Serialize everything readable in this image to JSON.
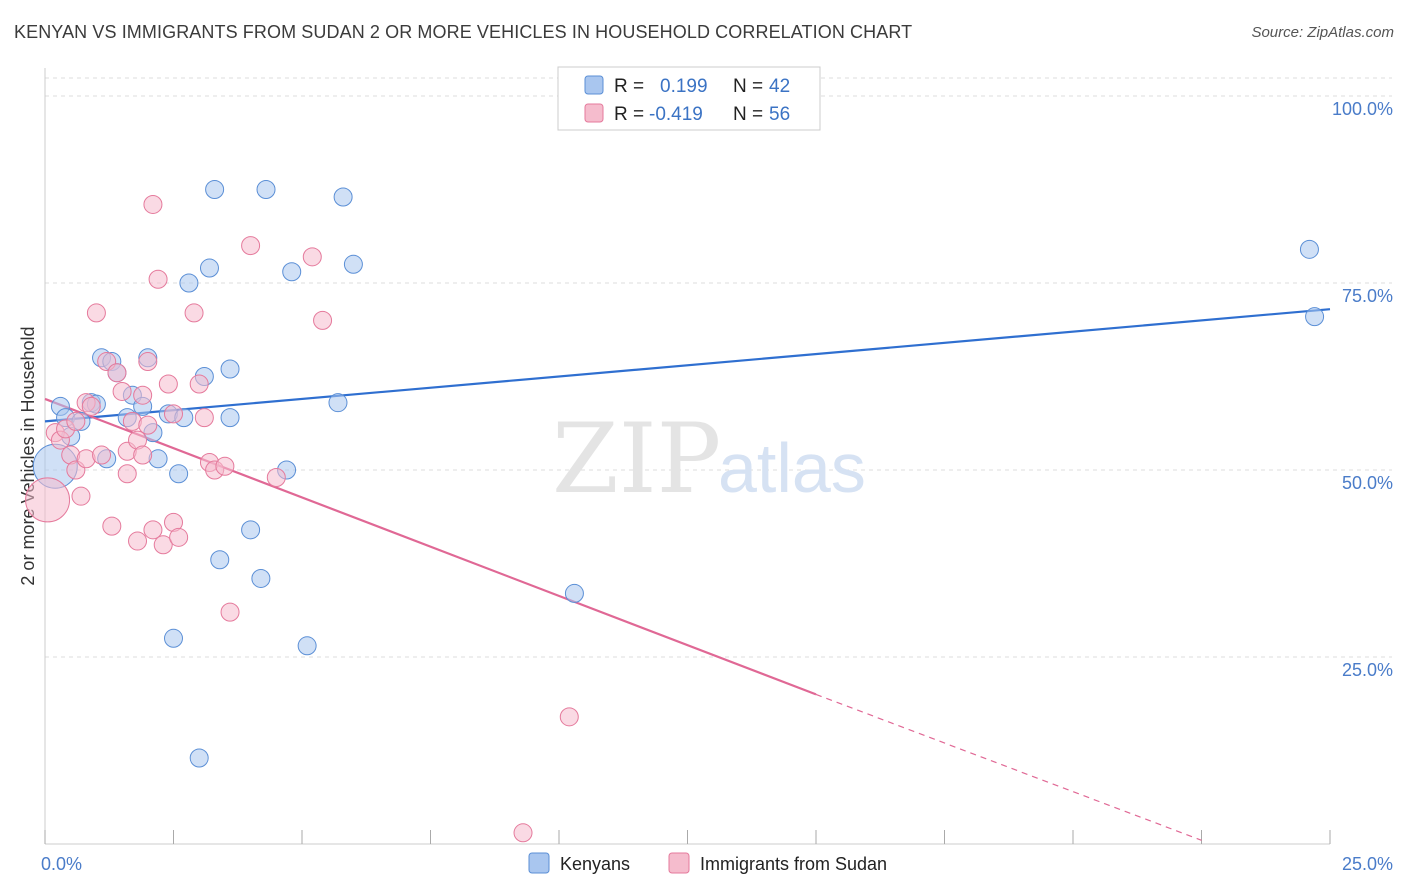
{
  "header": {
    "title": "KENYAN VS IMMIGRANTS FROM SUDAN 2 OR MORE VEHICLES IN HOUSEHOLD CORRELATION CHART",
    "source": "Source: ZipAtlas.com"
  },
  "watermark": {
    "zip": "ZIP",
    "atlas": "atlas"
  },
  "colors": {
    "kenyan_fill": "#a9c6ef",
    "kenyan_stroke": "#5b8fd6",
    "kenyan_line": "#2f6fd0",
    "sudan_fill": "#f5bccd",
    "sudan_stroke": "#e57a9c",
    "sudan_line": "#e06895",
    "grid": "#dddddd",
    "tick_text": "#4a7cc9"
  },
  "legend_top": {
    "rows": [
      {
        "r_label": "R =",
        "r_value": "0.199",
        "n_label": "N =",
        "n_value": "42"
      },
      {
        "r_label": "R =",
        "r_value": "-0.419",
        "n_label": "N =",
        "n_value": "56"
      }
    ]
  },
  "legend_bottom": {
    "items": [
      {
        "label": "Kenyans"
      },
      {
        "label": "Immigrants from Sudan"
      }
    ]
  },
  "chart_data": {
    "type": "scatter",
    "xlabel": "",
    "ylabel": "2 or more Vehicles in Household",
    "xlim": [
      0,
      25
    ],
    "ylim": [
      0,
      100
    ],
    "x_ticks": [
      "0.0%",
      "25.0%"
    ],
    "y_ticks": [
      "25.0%",
      "50.0%",
      "75.0%",
      "100.0%"
    ],
    "y_tick_values": [
      25,
      50,
      75,
      100
    ],
    "grid": true,
    "legend": "top-center",
    "series": [
      {
        "name": "Kenyans",
        "trend": {
          "x0": 0,
          "y0": 56.5,
          "x1": 25,
          "y1": 71.5
        },
        "points": [
          {
            "x": 0.2,
            "y": 50.5,
            "big": true
          },
          {
            "x": 0.3,
            "y": 58.5
          },
          {
            "x": 0.4,
            "y": 57.0
          },
          {
            "x": 0.5,
            "y": 54.5
          },
          {
            "x": 0.7,
            "y": 56.5
          },
          {
            "x": 0.9,
            "y": 59.0
          },
          {
            "x": 1.0,
            "y": 58.8
          },
          {
            "x": 1.1,
            "y": 65.0
          },
          {
            "x": 1.2,
            "y": 51.5
          },
          {
            "x": 1.3,
            "y": 64.5
          },
          {
            "x": 1.4,
            "y": 63.0
          },
          {
            "x": 1.6,
            "y": 57.0
          },
          {
            "x": 1.7,
            "y": 60.0
          },
          {
            "x": 1.9,
            "y": 58.5
          },
          {
            "x": 2.0,
            "y": 65.0
          },
          {
            "x": 2.1,
            "y": 55.0
          },
          {
            "x": 2.2,
            "y": 51.5
          },
          {
            "x": 2.4,
            "y": 57.5
          },
          {
            "x": 2.5,
            "y": 27.5
          },
          {
            "x": 2.6,
            "y": 49.5
          },
          {
            "x": 2.7,
            "y": 57.0
          },
          {
            "x": 2.8,
            "y": 75.0
          },
          {
            "x": 3.0,
            "y": 11.5
          },
          {
            "x": 3.1,
            "y": 62.5
          },
          {
            "x": 3.2,
            "y": 77.0
          },
          {
            "x": 3.3,
            "y": 87.5
          },
          {
            "x": 3.4,
            "y": 38.0
          },
          {
            "x": 3.6,
            "y": 57.0
          },
          {
            "x": 3.6,
            "y": 63.5
          },
          {
            "x": 4.0,
            "y": 42.0
          },
          {
            "x": 4.2,
            "y": 35.5
          },
          {
            "x": 4.3,
            "y": 87.5
          },
          {
            "x": 4.8,
            "y": 76.5
          },
          {
            "x": 4.7,
            "y": 50.0
          },
          {
            "x": 5.1,
            "y": 26.5
          },
          {
            "x": 5.7,
            "y": 59.0
          },
          {
            "x": 5.8,
            "y": 86.5
          },
          {
            "x": 6.0,
            "y": 77.5
          },
          {
            "x": 10.3,
            "y": 33.5
          },
          {
            "x": 24.6,
            "y": 79.5
          },
          {
            "x": 24.7,
            "y": 70.5
          }
        ]
      },
      {
        "name": "Immigrants from Sudan",
        "trend": {
          "x0": 0,
          "y0": 59.5,
          "x1": 15,
          "y1": 20.0,
          "dash_x1": 22.5,
          "dash_y1": 0.5
        },
        "points": [
          {
            "x": 0.05,
            "y": 46.0,
            "big": true
          },
          {
            "x": 0.2,
            "y": 55.0
          },
          {
            "x": 0.3,
            "y": 54.0
          },
          {
            "x": 0.4,
            "y": 55.5
          },
          {
            "x": 0.5,
            "y": 52.0
          },
          {
            "x": 0.6,
            "y": 50.0
          },
          {
            "x": 0.6,
            "y": 56.5
          },
          {
            "x": 0.7,
            "y": 46.5
          },
          {
            "x": 0.8,
            "y": 59.0
          },
          {
            "x": 0.8,
            "y": 51.5
          },
          {
            "x": 0.9,
            "y": 58.5
          },
          {
            "x": 1.0,
            "y": 71.0
          },
          {
            "x": 1.1,
            "y": 52.0
          },
          {
            "x": 1.2,
            "y": 64.5
          },
          {
            "x": 1.3,
            "y": 42.5
          },
          {
            "x": 1.4,
            "y": 63.0
          },
          {
            "x": 1.5,
            "y": 60.5
          },
          {
            "x": 1.6,
            "y": 52.5
          },
          {
            "x": 1.6,
            "y": 49.5
          },
          {
            "x": 1.7,
            "y": 56.5
          },
          {
            "x": 1.8,
            "y": 40.5
          },
          {
            "x": 1.8,
            "y": 54.0
          },
          {
            "x": 1.9,
            "y": 60.0
          },
          {
            "x": 1.9,
            "y": 52.0
          },
          {
            "x": 2.0,
            "y": 64.5
          },
          {
            "x": 2.0,
            "y": 56.0
          },
          {
            "x": 2.1,
            "y": 42.0
          },
          {
            "x": 2.2,
            "y": 75.5
          },
          {
            "x": 2.3,
            "y": 40.0
          },
          {
            "x": 2.4,
            "y": 61.5
          },
          {
            "x": 2.5,
            "y": 43.0
          },
          {
            "x": 2.5,
            "y": 57.5
          },
          {
            "x": 2.6,
            "y": 41.0
          },
          {
            "x": 2.9,
            "y": 71.0
          },
          {
            "x": 3.0,
            "y": 61.5
          },
          {
            "x": 3.1,
            "y": 57.0
          },
          {
            "x": 3.2,
            "y": 51.0
          },
          {
            "x": 3.3,
            "y": 50.0
          },
          {
            "x": 3.5,
            "y": 50.5
          },
          {
            "x": 3.6,
            "y": 31.0
          },
          {
            "x": 4.0,
            "y": 80.0
          },
          {
            "x": 4.5,
            "y": 49.0
          },
          {
            "x": 5.2,
            "y": 78.5
          },
          {
            "x": 5.4,
            "y": 70.0
          },
          {
            "x": 2.1,
            "y": 85.5
          },
          {
            "x": 9.3,
            "y": 1.5
          },
          {
            "x": 10.2,
            "y": 17.0
          }
        ]
      }
    ]
  }
}
